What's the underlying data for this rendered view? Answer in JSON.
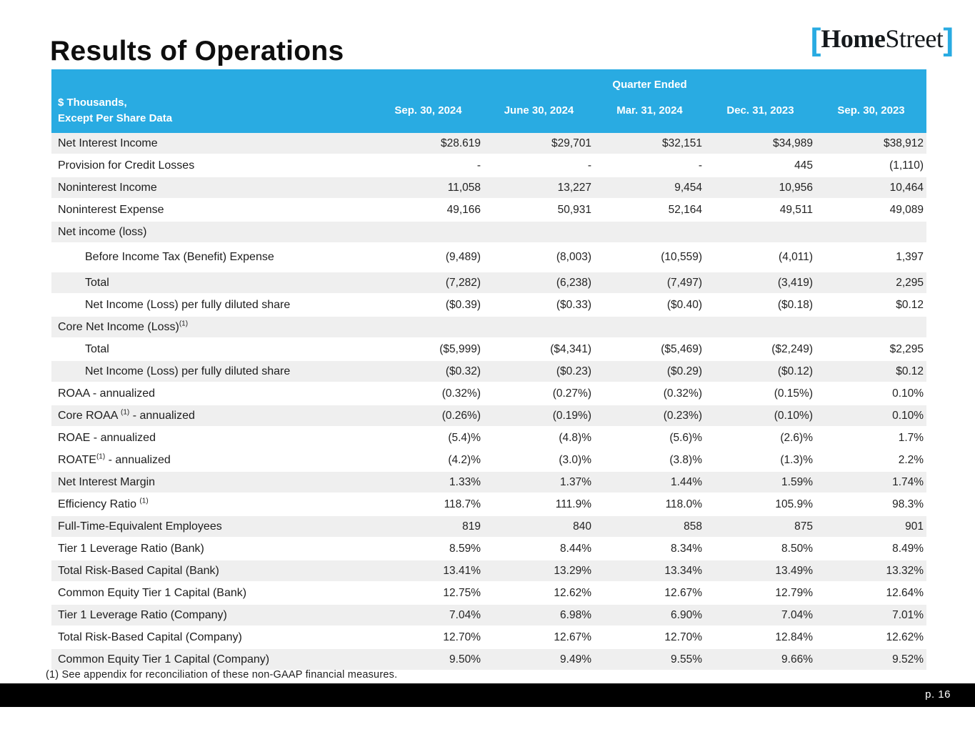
{
  "slide": {
    "title": "Results of Operations",
    "footnote": "(1) See appendix for reconciliation of these non-GAAP financial measures.",
    "page_number": "p. 16"
  },
  "logo": {
    "bracket_left": "[",
    "home": "Home",
    "street": "Street",
    "bracket_right": "]"
  },
  "colors": {
    "accent_cyan": "#29ABE2",
    "row_shade": "#EFEFEF",
    "footer_black": "#000000",
    "text_dark": "#1d1d1d"
  },
  "table": {
    "header": {
      "group_label": "Quarter Ended",
      "row_label_line1": "$ Thousands,",
      "row_label_line2": "Except Per Share Data",
      "columns": [
        "Sep. 30, 2024",
        "June 30, 2024",
        "Mar. 31, 2024",
        "Dec. 31, 2023",
        "Sep. 30, 2023"
      ]
    },
    "rows": [
      {
        "label": "Net Interest Income",
        "shaded": true,
        "values": [
          "$28.619",
          "$29,701",
          "$32,151",
          "$34,989",
          "$38,912"
        ]
      },
      {
        "label": "Provision for Credit Losses",
        "shaded": false,
        "values": [
          "-",
          "-",
          "-",
          "445",
          "(1,110)"
        ]
      },
      {
        "label": "Noninterest Income",
        "shaded": true,
        "values": [
          "11,058",
          "13,227",
          "9,454",
          "10,956",
          "10,464"
        ]
      },
      {
        "label": "Noninterest Expense",
        "shaded": false,
        "values": [
          "49,166",
          "50,931",
          "52,164",
          "49,511",
          "49,089"
        ]
      },
      {
        "label": "Net income (loss)",
        "shaded": true,
        "section": true,
        "values": [
          "",
          "",
          "",
          "",
          ""
        ]
      },
      {
        "label": "Before Income Tax (Benefit) Expense",
        "shaded": false,
        "indent": true,
        "tall": true,
        "values": [
          "(9,489)",
          "(8,003)",
          "(10,559)",
          "(4,011)",
          "1,397"
        ]
      },
      {
        "label": "Total",
        "shaded": true,
        "indent": true,
        "values": [
          "(7,282)",
          "(6,238)",
          "(7,497)",
          "(3,419)",
          "2,295"
        ]
      },
      {
        "label": "Net Income (Loss) per fully diluted share",
        "shaded": false,
        "indent": true,
        "values": [
          "($0.39)",
          "($0.33)",
          "($0.40)",
          "($0.18)",
          "$0.12"
        ]
      },
      {
        "label": "Core Net Income (Loss)",
        "sup": "(1)",
        "shaded": true,
        "section": true,
        "values": [
          "",
          "",
          "",
          "",
          ""
        ]
      },
      {
        "label": "Total",
        "shaded": false,
        "indent": true,
        "values": [
          "($5,999)",
          "($4,341)",
          "($5,469)",
          "($2,249)",
          "$2,295"
        ]
      },
      {
        "label": "Net Income (Loss) per fully diluted share",
        "shaded": true,
        "indent": true,
        "values": [
          "($0.32)",
          "($0.23)",
          "($0.29)",
          "($0.12)",
          "$0.12"
        ]
      },
      {
        "label": "ROAA - annualized",
        "shaded": false,
        "values": [
          "(0.32%)",
          "(0.27%)",
          "(0.32%)",
          "(0.15%)",
          "0.10%"
        ]
      },
      {
        "label": "Core ROAA ",
        "sup": "(1)",
        "label_after": " - annualized",
        "shaded": true,
        "values": [
          "(0.26%)",
          "(0.19%)",
          "(0.23%)",
          "(0.10%)",
          "0.10%"
        ]
      },
      {
        "label": "ROAE - annualized",
        "shaded": false,
        "values": [
          "(5.4)%",
          "(4.8)%",
          "(5.6)%",
          "(2.6)%",
          "1.7%"
        ]
      },
      {
        "label": "ROATE",
        "sup": "(1)",
        "label_after": " - annualized",
        "shaded": false,
        "values": [
          "(4.2)%",
          "(3.0)%",
          "(3.8)%",
          "(1.3)%",
          "2.2%"
        ]
      },
      {
        "label": "Net Interest Margin",
        "shaded": true,
        "values": [
          "1.33%",
          "1.37%",
          "1.44%",
          "1.59%",
          "1.74%"
        ]
      },
      {
        "label": "Efficiency Ratio ",
        "sup": "(1)",
        "shaded": false,
        "values": [
          "118.7%",
          "111.9%",
          "118.0%",
          "105.9%",
          "98.3%"
        ]
      },
      {
        "label": "Full-Time-Equivalent Employees",
        "shaded": true,
        "values": [
          "819",
          "840",
          "858",
          "875",
          "901"
        ]
      },
      {
        "label": "Tier 1 Leverage Ratio (Bank)",
        "shaded": false,
        "values": [
          "8.59%",
          "8.44%",
          "8.34%",
          "8.50%",
          "8.49%"
        ]
      },
      {
        "label": "Total Risk-Based Capital (Bank)",
        "shaded": true,
        "values": [
          "13.41%",
          "13.29%",
          "13.34%",
          "13.49%",
          "13.32%"
        ]
      },
      {
        "label": "Common Equity Tier 1 Capital (Bank)",
        "shaded": false,
        "values": [
          "12.75%",
          "12.62%",
          "12.67%",
          "12.79%",
          "12.64%"
        ]
      },
      {
        "label": "Tier 1 Leverage Ratio (Company)",
        "shaded": true,
        "values": [
          "7.04%",
          "6.98%",
          "6.90%",
          "7.04%",
          "7.01%"
        ]
      },
      {
        "label": "Total Risk-Based Capital (Company)",
        "shaded": false,
        "values": [
          "12.70%",
          "12.67%",
          "12.70%",
          "12.84%",
          "12.62%"
        ]
      },
      {
        "label": "Common Equity Tier 1 Capital (Company)",
        "shaded": true,
        "values": [
          "9.50%",
          "9.49%",
          "9.55%",
          "9.66%",
          "9.52%"
        ]
      }
    ]
  }
}
